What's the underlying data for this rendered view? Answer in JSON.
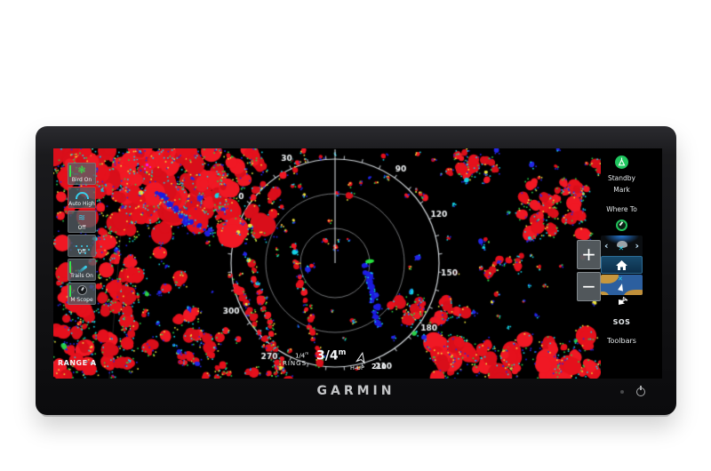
{
  "brand": "GARMIN",
  "left_controls": {
    "items": [
      {
        "label": "Bird On",
        "icon": "bird-icon",
        "state": "on"
      },
      {
        "label": "Auto High",
        "icon": "gain-arc-icon",
        "state": "active"
      },
      {
        "label": "Off",
        "icon": "sea-waves-icon",
        "state": "off"
      },
      {
        "label": "Off",
        "icon": "rain-drops-icon",
        "state": "off"
      },
      {
        "label": "Trails On",
        "icon": "trails-icon",
        "state": "on"
      },
      {
        "label": "M Scope",
        "icon": "mscope-knob-icon",
        "state": "on"
      }
    ]
  },
  "zoom": {
    "in_label": "+",
    "out_label": "−"
  },
  "menu": {
    "standby_label": "Standby",
    "mark_label": "Mark",
    "where_to_label": "Where To",
    "sos_label": "SOS",
    "toolbars_label": "Toolbars"
  },
  "radar_overlay": {
    "range_label": "RANGE A",
    "rings_fraction": "1/4",
    "rings_unit": "m",
    "rings_label": "RINGS",
    "range_fraction": "3/4",
    "range_unit": "m",
    "orientation_label": "H-UP",
    "heading": "210",
    "bearings": [
      {
        "text": "0",
        "deg": 0
      },
      {
        "text": "30",
        "deg": 30
      },
      {
        "text": "90",
        "deg": 90
      },
      {
        "text": "120",
        "deg": 120
      },
      {
        "text": "150",
        "deg": 150
      },
      {
        "text": "180",
        "deg": 180
      },
      {
        "text": "210",
        "deg": 210
      },
      {
        "text": "270",
        "deg": 270
      },
      {
        "text": "300",
        "deg": 300
      }
    ],
    "rotation_offset_deg": -55
  },
  "colors": {
    "echo_red": [
      "#e5101c",
      "#f01824",
      "#d90e1a"
    ],
    "fringe": [
      "#2326e6",
      "#15d2e6",
      "#eee33e",
      "#2bd148"
    ],
    "trail_blue": "#1c1ce0",
    "target_green": "#25e23e",
    "magenta": "#f318e0",
    "ring_gray": "rgba(205,210,215,0.55)",
    "compass_white": "rgba(232,237,242,0.9)",
    "standby_green": "#1fc55e",
    "active_border_red": "#e8252c",
    "control_cyan": "#38cdea"
  }
}
